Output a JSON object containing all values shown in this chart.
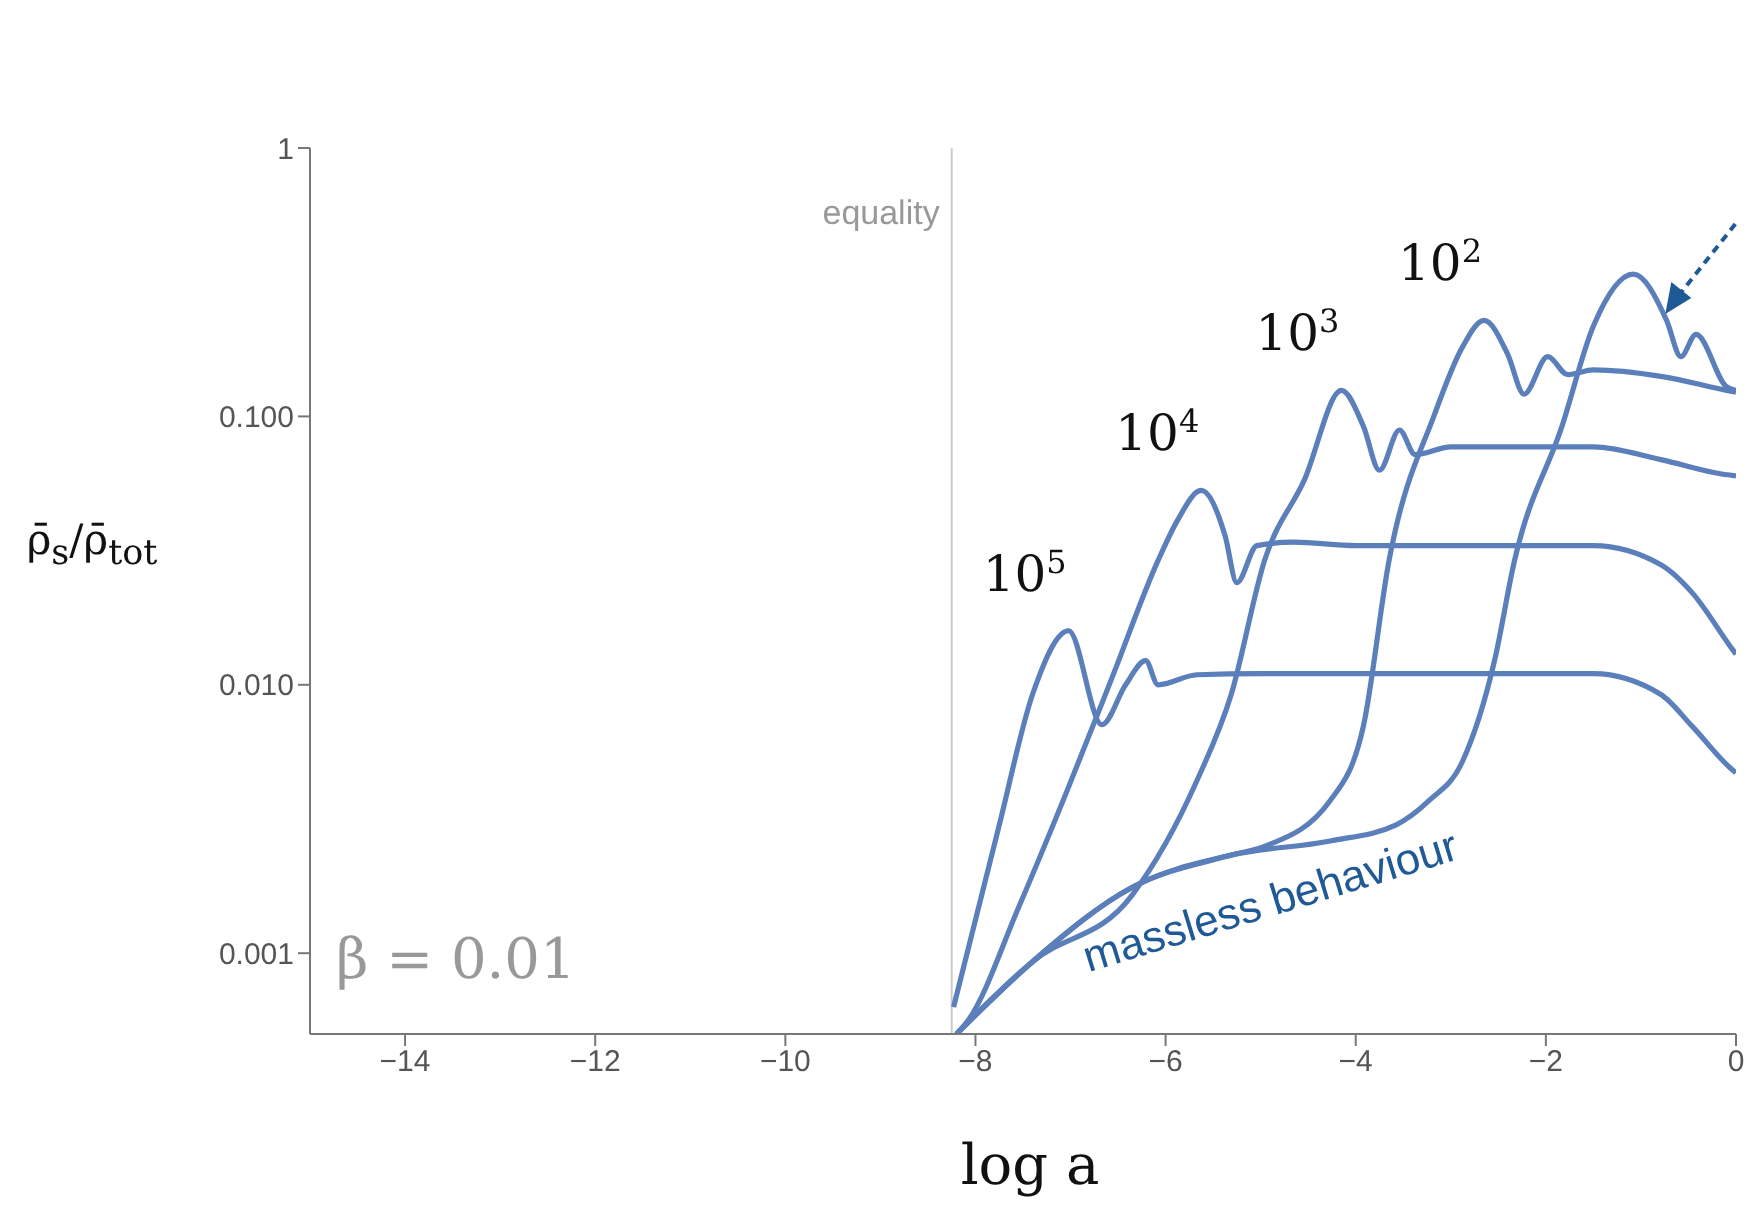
{
  "chart_data": {
    "type": "line",
    "xlabel": "log a",
    "ylabel": "ρ̄$_{s}$/ρ̄$_{tot}$",
    "log": "y",
    "grid": false,
    "legend": false,
    "marker": "none",
    "line_style": "solid",
    "xlim": [
      -15,
      0
    ],
    "xticks": [
      -14,
      -12,
      -10,
      -8,
      -6,
      -4,
      -2,
      0
    ],
    "ylim": [
      0.0005,
      1
    ],
    "yticks": [
      {
        "value": 0.001,
        "label": "0.001"
      },
      {
        "value": 0.01,
        "label": "0.010"
      },
      {
        "value": 0.1,
        "label": "0.100"
      },
      1
    ],
    "ref_lines": [
      {
        "axis": "x",
        "value": -8.25,
        "label": "equality",
        "color": "#cccccc"
      }
    ],
    "annotations": [
      "massless behaviour",
      "β = 0.01"
    ],
    "series": [
      {
        "name": "10$^{5}$",
        "color": "#5b7fba",
        "x": [
          -8.23,
          -7.75,
          -7.4,
          -7.02,
          -6.67,
          -6.42,
          -6.21,
          -6.08,
          -5.67,
          -5,
          -4,
          -3,
          -2,
          -1.5,
          -0.79,
          -0.46,
          -0.06,
          0
        ],
        "values": [
          0.00063,
          0.003,
          0.0092,
          0.0159,
          0.0071,
          0.01,
          0.0123,
          0.01,
          0.0109,
          0.011,
          0.011,
          0.011,
          0.011,
          0.011,
          0.0092,
          0.007,
          0.0049,
          0.0047
        ]
      },
      {
        "name": "10$^{4}$",
        "color": "#5b7fba",
        "x": [
          -8.2,
          -8.08,
          -7.54,
          -7.04,
          -6.56,
          -6.08,
          -5.875,
          -5.625,
          -5.375,
          -5.25,
          -5.04,
          -4.65,
          -4,
          -3,
          -2,
          -1.5,
          -0.79,
          -0.46,
          -0.06,
          0
        ],
        "values": [
          0.0005,
          0.00056,
          0.0015,
          0.004,
          0.0107,
          0.029,
          0.041,
          0.053,
          0.036,
          0.024,
          0.033,
          0.034,
          0.033,
          0.033,
          0.033,
          0.033,
          0.028,
          0.022,
          0.0139,
          0.013
        ]
      },
      {
        "name": "10$^{3}$",
        "color": "#5b7fba",
        "x": [
          -8.2,
          -7.4,
          -6.35,
          -5.67,
          -5.31,
          -4.96,
          -4.54,
          -4.15,
          -3.92,
          -3.75,
          -3.54,
          -3.375,
          -3,
          -2,
          -1.5,
          -0.79,
          -0.15,
          0
        ],
        "values": [
          0.0005,
          0.00093,
          0.00165,
          0.0044,
          0.0092,
          0.029,
          0.058,
          0.125,
          0.092,
          0.063,
          0.089,
          0.072,
          0.077,
          0.077,
          0.077,
          0.069,
          0.061,
          0.06
        ]
      },
      {
        "name": "10$^{2}$",
        "color": "#5b7fba",
        "x": [
          -8.2,
          -7.4,
          -6.35,
          -5.31,
          -4.96,
          -4.27,
          -3.92,
          -3.65,
          -3.17,
          -2.875,
          -2.65,
          -2.4,
          -2.23,
          -1.98,
          -1.77,
          -1.5,
          -0.79,
          -0.1,
          0
        ],
        "values": [
          0.0005,
          0.00093,
          0.00176,
          0.00232,
          0.0025,
          0.0037,
          0.007,
          0.029,
          0.102,
          0.182,
          0.228,
          0.17,
          0.121,
          0.167,
          0.143,
          0.149,
          0.141,
          0.125,
          0.123
        ]
      },
      {
        "color": "#5b7fba",
        "x": [
          -8.2,
          -7.4,
          -6.35,
          -5.31,
          -4.27,
          -3.58,
          -3.23,
          -2.875,
          -2.54,
          -2.33,
          -1.83,
          -1.5,
          -1.08,
          -0.73,
          -0.58,
          -0.42,
          -0.1,
          0
        ],
        "values": [
          0.0005,
          0.00093,
          0.00176,
          0.00232,
          0.00262,
          0.003,
          0.0037,
          0.0052,
          0.0123,
          0.029,
          0.092,
          0.217,
          0.339,
          0.228,
          0.167,
          0.202,
          0.129,
          0.125
        ]
      }
    ]
  }
}
